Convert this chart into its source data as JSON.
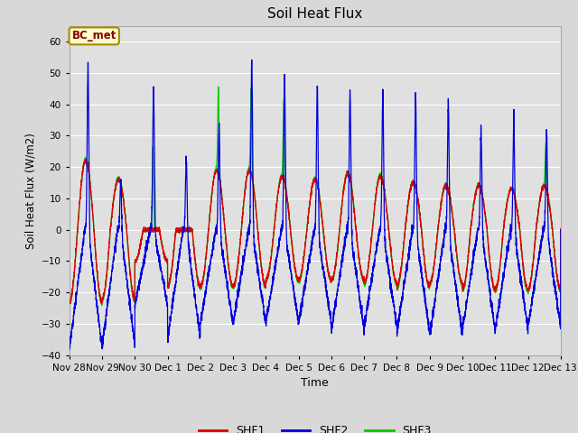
{
  "title": "Soil Heat Flux",
  "ylabel": "Soil Heat Flux (W/m2)",
  "xlabel": "Time",
  "ylim": [
    -40,
    65
  ],
  "yticks": [
    -40,
    -30,
    -20,
    -10,
    0,
    10,
    20,
    30,
    40,
    50,
    60
  ],
  "fig_bg_color": "#d8d8d8",
  "plot_bg_color": "#e0e0e0",
  "grid_color": "#ffffff",
  "shf1_color": "#dd0000",
  "shf2_color": "#0000dd",
  "shf3_color": "#00cc00",
  "annotation_text": "BC_met",
  "annotation_bg": "#ffffcc",
  "annotation_border": "#aa8800",
  "legend_labels": [
    "SHF1",
    "SHF2",
    "SHF3"
  ],
  "xtick_labels": [
    "Nov 28",
    "Nov 29",
    "Nov 30",
    "Dec 1",
    "Dec 2",
    "Dec 3",
    "Dec 4",
    "Dec 5",
    "Dec 6",
    "Dec 7",
    "Dec 8",
    "Dec 9",
    "Dec 10",
    "Dec 11",
    "Dec 12",
    "Dec 13"
  ],
  "num_days": 15,
  "points_per_day": 288
}
